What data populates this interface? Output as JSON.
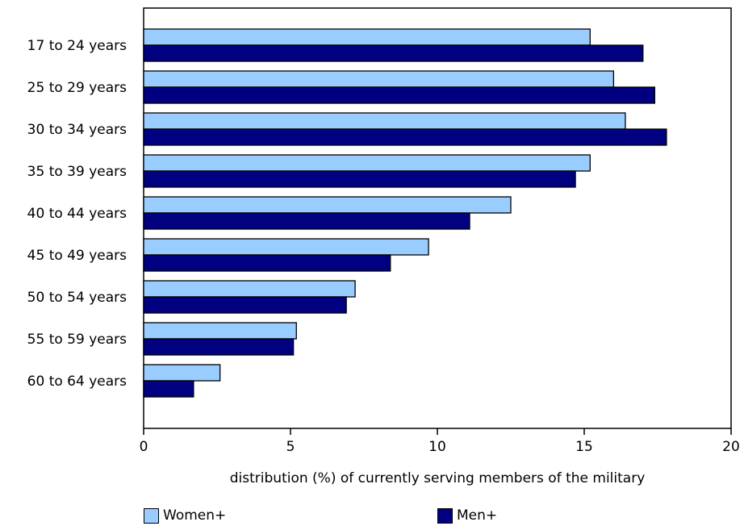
{
  "chart_data": {
    "type": "bar",
    "orientation": "horizontal",
    "categories": [
      "17 to 24 years",
      "25 to 29 years",
      "30 to 34 years",
      "35 to 39 years",
      "40 to 44 years",
      "45 to 49 years",
      "50 to 54 years",
      "55 to 59 years",
      "60 to 64 years"
    ],
    "series": [
      {
        "name": "Women+",
        "color": "#99ccff",
        "values": [
          15.2,
          16.0,
          16.4,
          15.2,
          12.5,
          9.7,
          7.2,
          5.2,
          2.6
        ]
      },
      {
        "name": "Men+",
        "color": "#000080",
        "values": [
          17.0,
          17.4,
          17.8,
          14.7,
          11.1,
          8.4,
          6.9,
          5.1,
          1.7
        ]
      }
    ],
    "xlabel": "distribution (%) of currently serving members of the military",
    "ylabel": "",
    "xlim": [
      0,
      20
    ],
    "xticks": [
      "0",
      "5",
      "10",
      "15",
      "20"
    ],
    "grid": false,
    "legend_position": "bottom"
  }
}
